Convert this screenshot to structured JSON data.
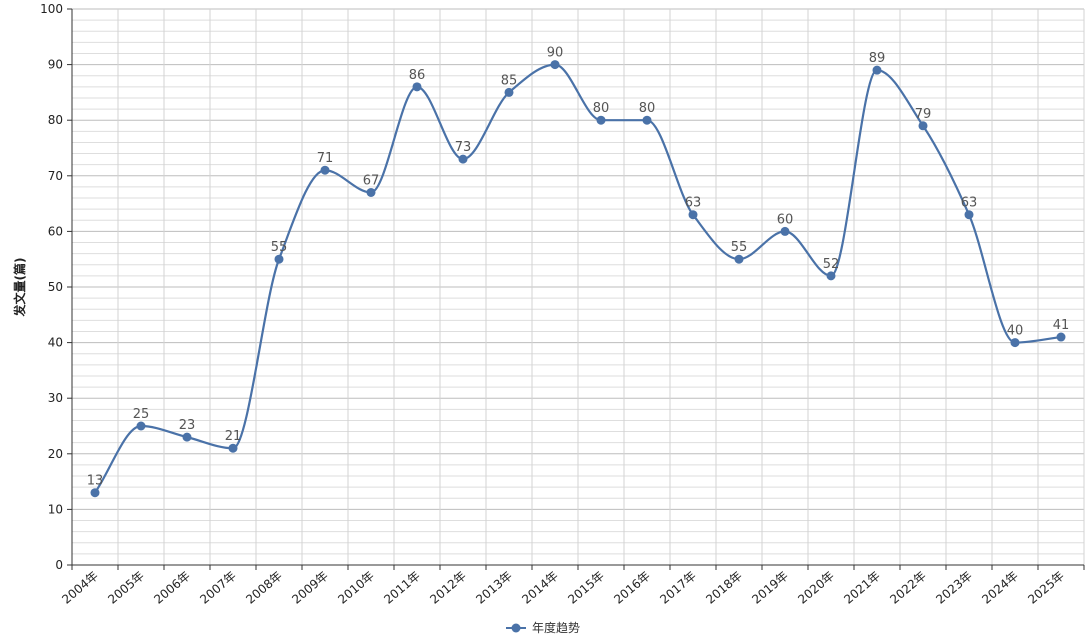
{
  "chart_data": {
    "type": "line",
    "smooth": true,
    "ylabel": "发文量(篇)",
    "xlabel": "",
    "ylim": [
      0,
      100
    ],
    "yticks": [
      0,
      10,
      20,
      30,
      40,
      50,
      60,
      70,
      80,
      90,
      100
    ],
    "grid": true,
    "legend_position": "bottom",
    "categories": [
      "2004年",
      "2005年",
      "2006年",
      "2007年",
      "2008年",
      "2009年",
      "2010年",
      "2011年",
      "2012年",
      "2013年",
      "2014年",
      "2015年",
      "2016年",
      "2017年",
      "2018年",
      "2019年",
      "2020年",
      "2021年",
      "2022年",
      "2023年",
      "2024年",
      "2025年"
    ],
    "series": [
      {
        "name": "年度趋势",
        "color": "#4a72a8",
        "values": [
          13,
          25,
          23,
          21,
          55,
          71,
          67,
          86,
          73,
          85,
          90,
          80,
          80,
          63,
          55,
          60,
          52,
          89,
          79,
          63,
          40,
          41
        ]
      }
    ]
  }
}
